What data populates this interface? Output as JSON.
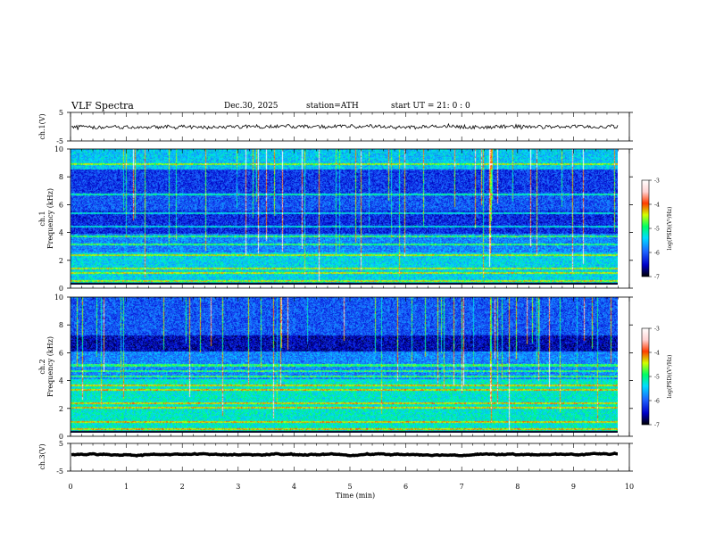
{
  "header": {
    "title": "VLF  Spectra",
    "date": "Dec.30, 2025",
    "station": "station=ATH",
    "start_ut": "start  UT  =   21: 0  : 0"
  },
  "chart_data": [
    {
      "type": "line",
      "panel": "ch1-waveform",
      "ylabel": "ch.1(V)",
      "ylim": [
        -5,
        5
      ],
      "y_ticks": [
        "5",
        "-5"
      ],
      "trace_level": 0,
      "trace_noise_amplitude": 1.2,
      "color": "#000000"
    },
    {
      "type": "heatmap",
      "panel": "ch1-spectrogram",
      "ylabel": "Frequency  (kHz)",
      "channel_label": "ch.1",
      "ylim": [
        0,
        10
      ],
      "y_ticks": [
        "0",
        "2",
        "4",
        "6",
        "8",
        "10"
      ],
      "colorbar": {
        "label": "log(PSD)(V²/Hz)",
        "range": [
          -7,
          -3
        ],
        "ticks": [
          "-3",
          "-4",
          "-5",
          "-6",
          "-7"
        ]
      },
      "persistent_lines_khz": [
        0.3,
        0.9,
        1.2,
        2.2,
        3.0,
        3.6,
        4.3,
        5.3,
        6.7,
        8.9
      ]
    },
    {
      "type": "heatmap",
      "panel": "ch2-spectrogram",
      "ylabel": "Frequency  (kHz)",
      "channel_label": "ch.2",
      "ylim": [
        0,
        10
      ],
      "y_ticks": [
        "0",
        "2",
        "4",
        "6",
        "8",
        "10"
      ],
      "colorbar": {
        "label": "log(PSD)(V²/Hz)",
        "range": [
          -7,
          -3
        ],
        "ticks": [
          "-3",
          "-4",
          "-5",
          "-6",
          "-7"
        ]
      },
      "persistent_lines_khz": [
        0.3,
        0.8,
        1.9,
        2.2,
        3.2,
        3.5,
        4.2,
        4.6,
        5.0
      ]
    },
    {
      "type": "line",
      "panel": "ch3-waveform",
      "ylabel": "ch.3(V)",
      "ylim": [
        -5,
        5
      ],
      "y_ticks": [
        "5",
        "-5"
      ],
      "trace_level": 1,
      "trace_noise_amplitude": 0.15,
      "color": "#000000",
      "xlabel": "Time  (min)",
      "xlim": [
        0,
        10
      ],
      "x_ticks": [
        "0",
        "1",
        "2",
        "3",
        "4",
        "5",
        "6",
        "7",
        "8",
        "9",
        "10"
      ],
      "data_end_min": 9.8
    }
  ],
  "colors": {
    "colormap": [
      "#000000",
      "#0000c8",
      "#1e64ff",
      "#00dcff",
      "#00ff64",
      "#d2ff00",
      "#ff3c00",
      "#ffd2d2",
      "#ffffff"
    ]
  }
}
